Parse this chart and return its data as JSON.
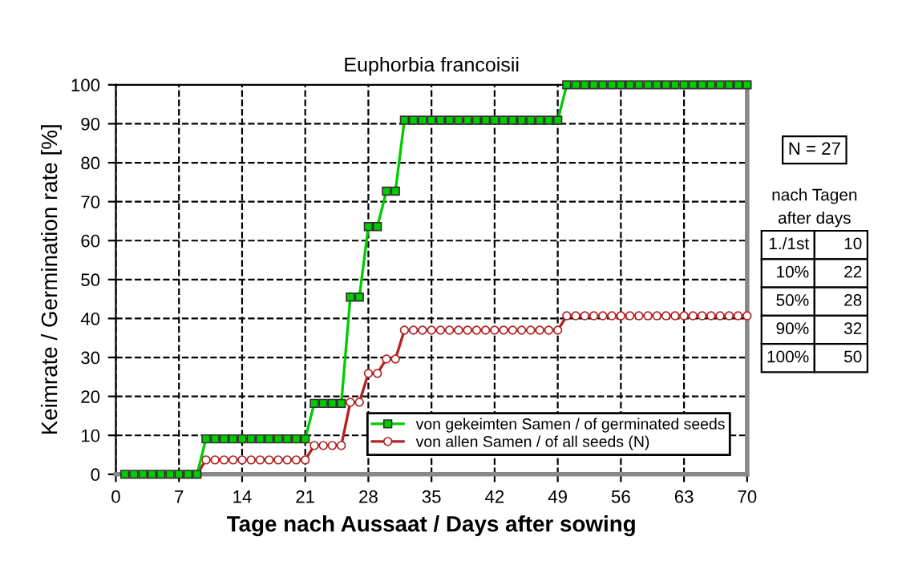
{
  "chart_data": {
    "type": "line",
    "title": "Euphorbia francoisii",
    "xlabel": "Tage nach Aussaat / Days after sowing",
    "ylabel": "Keimrate / Germination rate [%]",
    "x": [
      1,
      2,
      3,
      4,
      5,
      6,
      7,
      8,
      9,
      10,
      11,
      12,
      13,
      14,
      15,
      16,
      17,
      18,
      19,
      20,
      21,
      22,
      23,
      24,
      25,
      26,
      27,
      28,
      29,
      30,
      31,
      32,
      33,
      34,
      35,
      36,
      37,
      38,
      39,
      40,
      41,
      42,
      43,
      44,
      45,
      46,
      47,
      48,
      49,
      50,
      51,
      52,
      53,
      54,
      55,
      56,
      57,
      58,
      59,
      60,
      61,
      62,
      63,
      64,
      65,
      66,
      67,
      68,
      69,
      70
    ],
    "series": [
      {
        "name": "von gekeimten Samen / of germinated seeds",
        "color": "#00cc00",
        "marker": "square",
        "values": [
          0,
          0,
          0,
          0,
          0,
          0,
          0,
          0,
          0,
          9.1,
          9.1,
          9.1,
          9.1,
          9.1,
          9.1,
          9.1,
          9.1,
          9.1,
          9.1,
          9.1,
          9.1,
          18.2,
          18.2,
          18.2,
          18.2,
          45.5,
          45.5,
          63.6,
          63.6,
          72.7,
          72.7,
          90.9,
          90.9,
          90.9,
          90.9,
          90.9,
          90.9,
          90.9,
          90.9,
          90.9,
          90.9,
          90.9,
          90.9,
          90.9,
          90.9,
          90.9,
          90.9,
          90.9,
          90.9,
          100,
          100,
          100,
          100,
          100,
          100,
          100,
          100,
          100,
          100,
          100,
          100,
          100,
          100,
          100,
          100,
          100,
          100,
          100,
          100,
          100
        ]
      },
      {
        "name": "von allen Samen / of all seeds (N)",
        "color": "#b22222",
        "marker": "circle",
        "values": [
          null,
          null,
          null,
          null,
          null,
          null,
          null,
          0,
          0,
          3.7,
          3.7,
          3.7,
          3.7,
          3.7,
          3.7,
          3.7,
          3.7,
          3.7,
          3.7,
          3.7,
          3.7,
          7.4,
          7.4,
          7.4,
          7.4,
          18.5,
          18.5,
          25.9,
          25.9,
          29.6,
          29.6,
          37.0,
          37.0,
          37.0,
          37.0,
          37.0,
          37.0,
          37.0,
          37.0,
          37.0,
          37.0,
          37.0,
          37.0,
          37.0,
          37.0,
          37.0,
          37.0,
          37.0,
          37.0,
          40.7,
          40.7,
          40.7,
          40.7,
          40.7,
          40.7,
          40.7,
          40.7,
          40.7,
          40.7,
          40.7,
          40.7,
          40.7,
          40.7,
          40.7,
          40.7,
          40.7,
          40.7,
          40.7,
          40.7,
          40.7
        ]
      }
    ],
    "xlim": [
      0,
      70
    ],
    "xticks": [
      0,
      7,
      14,
      21,
      28,
      35,
      42,
      49,
      56,
      63,
      70
    ],
    "ylim": [
      0,
      100
    ],
    "yticks": [
      0,
      10,
      20,
      30,
      40,
      50,
      60,
      70,
      80,
      90,
      100
    ],
    "grid": true,
    "line_style": "solid",
    "legend": "bottom right",
    "annotations": [
      "N = 27",
      "nach Tagen",
      "after days",
      "1./1st",
      "10",
      "10%",
      "22",
      "50%",
      "28",
      "90%",
      "32",
      "100%",
      "50"
    ]
  }
}
